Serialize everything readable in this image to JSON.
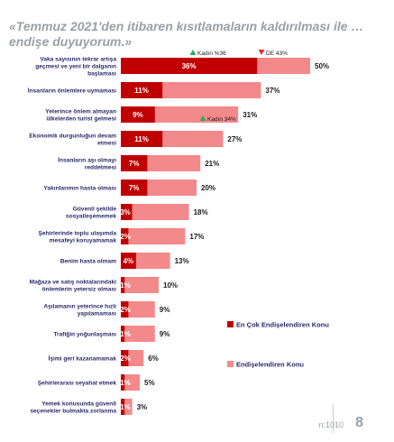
{
  "title": "«Temmuz 2021'den itibaren kısıtlamaların kaldırılması ile … endişe duyuyorum.»",
  "footer": {
    "sample": "n:1010",
    "page": "8"
  },
  "colors": {
    "dark": "#c00000",
    "light": "#f4898c",
    "up": "#27ae60",
    "down": "#e03030"
  },
  "chart_data": {
    "type": "bar",
    "stacked": true,
    "orientation": "horizontal",
    "categories": [
      "Vaka sayısının tekrar artışa geçmesi ve yeni bir dalganın başlaması",
      "İnsanların önlemlere uymaması",
      "Yeterince önlem almayan ülkelerden turist gelmesi",
      "Ekonomik durgunluğun devam etmesi",
      "İnsanların aşı olmayı reddetmesi",
      "Yakınlarımın hasta olması",
      "Güvenli şekilde sosyalleşememek",
      "Şehirlerinde toplu ulaşımda mesafeyi koruyamamak",
      "Benim hasta olmam",
      "Mağaza ve satış noktalarındaki önlemlerin yetersiz olması",
      "Aşılamanın yeterince hızlı yapılamaması",
      "Trafiğin yoğunlaşması",
      "İşimi geri kazanamamak",
      "Şehirlerarası seyahat etmek",
      "Yemek konusunda güvenli seçenekler bulmakta zorlanma"
    ],
    "series": [
      {
        "name": "En Çok Endişelendiren Konu",
        "values": [
          36,
          11,
          9,
          11,
          7,
          7,
          3,
          2,
          4,
          1,
          2,
          1,
          2,
          1,
          1
        ]
      },
      {
        "name": "Endişelendiren Konu",
        "values": [
          50,
          37,
          31,
          27,
          21,
          20,
          18,
          17,
          13,
          10,
          9,
          9,
          6,
          5,
          3
        ]
      }
    ],
    "value_labels_dark": [
      "36%",
      "11%",
      "9%",
      "11%",
      "7%",
      "7%",
      "3%",
      "2%",
      "4%",
      "1%",
      "2%",
      "1%",
      "2%",
      "1%",
      "1%"
    ],
    "value_labels_total": [
      "50%",
      "37%",
      "31%",
      "27%",
      "21%",
      "20%",
      "18%",
      "17%",
      "13%",
      "10%",
      "9%",
      "9%",
      "6%",
      "5%",
      "3%"
    ],
    "annotations": [
      {
        "row": 0,
        "marker": "up",
        "text": "Kadın %36"
      },
      {
        "row": 0,
        "marker": "down",
        "text": "DE 43%"
      },
      {
        "row": 2,
        "marker": "up",
        "text": "Kadın 34%"
      }
    ],
    "legend_position": "right"
  }
}
